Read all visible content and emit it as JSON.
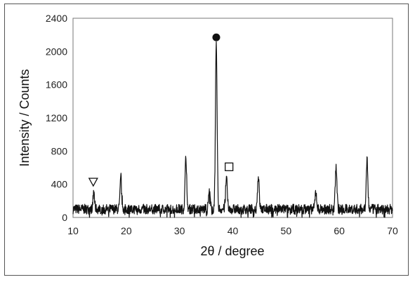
{
  "chart_data": {
    "type": "line",
    "xlabel": "2θ / degree",
    "ylabel": "Intensity / Counts",
    "xlim": [
      10,
      70
    ],
    "ylim": [
      0,
      2400
    ],
    "xticks": [
      "10",
      "20",
      "30",
      "40",
      "50",
      "60",
      "70"
    ],
    "yticks": [
      "0",
      "400",
      "800",
      "1200",
      "1600",
      "2000",
      "2400"
    ],
    "grid": false,
    "baseline": 100,
    "noise_amplitude": 60,
    "peaks": [
      {
        "x": 13.9,
        "y": 290
      },
      {
        "x": 19.0,
        "y": 490
      },
      {
        "x": 31.2,
        "y": 720
      },
      {
        "x": 35.6,
        "y": 320
      },
      {
        "x": 36.9,
        "y": 2060
      },
      {
        "x": 38.8,
        "y": 480
      },
      {
        "x": 44.8,
        "y": 500
      },
      {
        "x": 55.6,
        "y": 310
      },
      {
        "x": 59.4,
        "y": 620
      },
      {
        "x": 65.2,
        "y": 720
      }
    ],
    "markers": [
      {
        "symbol": "filled-circle",
        "x": 36.9,
        "y": 2170
      },
      {
        "symbol": "open-square",
        "x": 39.3,
        "y": 610
      },
      {
        "symbol": "open-triangle-down",
        "x": 13.8,
        "y": 430
      }
    ],
    "line_color": "#111111"
  }
}
